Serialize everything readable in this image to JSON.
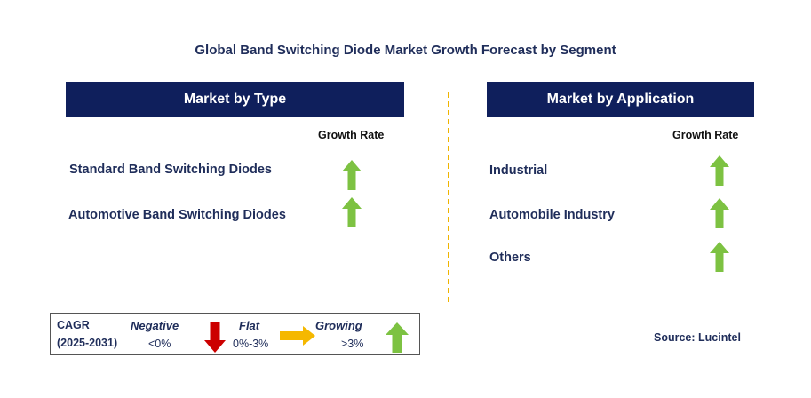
{
  "title": "Global Band Switching Diode Market Growth Forecast by Segment",
  "left_panel": {
    "header": "Market by Type",
    "growth_label": "Growth Rate",
    "items": [
      {
        "label": "Standard Band Switching Diodes",
        "trend": "growing"
      },
      {
        "label": "Automotive Band Switching Diodes",
        "trend": "growing"
      }
    ]
  },
  "right_panel": {
    "header": "Market by Application",
    "growth_label": "Growth Rate",
    "items": [
      {
        "label": "Industrial",
        "trend": "growing"
      },
      {
        "label": "Automobile Industry",
        "trend": "growing"
      },
      {
        "label": "Others",
        "trend": "growing"
      }
    ]
  },
  "legend": {
    "cagr_label": "CAGR",
    "period": "(2025-2031)",
    "negative": {
      "name": "Negative",
      "range": "<0%",
      "color": "#cc0000"
    },
    "flat": {
      "name": "Flat",
      "range": "0%-3%",
      "color": "#f5b800"
    },
    "growing": {
      "name": "Growing",
      "range": ">3%",
      "color": "#7dc242"
    }
  },
  "source": "Source: Lucintel",
  "colors": {
    "header_bg": "#0f1f5c",
    "text": "#1f2d5a",
    "up_arrow": "#7dc242",
    "divider": "#f0b400"
  }
}
